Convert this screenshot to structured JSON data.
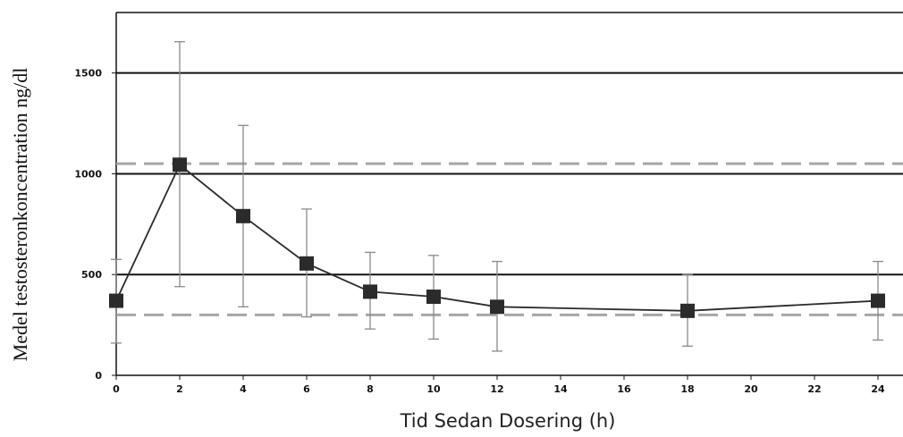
{
  "chart_data": {
    "type": "line",
    "xlabel": "Tid Sedan Dosering (h)",
    "ylabel": "Medel testosteronkoncentration ng/dl",
    "x_ticks": [
      "0",
      "2",
      "4",
      "6",
      "8",
      "10",
      "12",
      "14",
      "16",
      "18",
      "20",
      "22",
      "24"
    ],
    "y_ticks": [
      "0",
      "500",
      "1000",
      "1500"
    ],
    "xlim": [
      0,
      24
    ],
    "ylim": [
      0,
      1800
    ],
    "grid": "horizontal at 500, 1000, 1500",
    "reference_lines": [
      {
        "y": 300,
        "style": "dashed",
        "color": "#a6a6a6"
      },
      {
        "y": 1050,
        "style": "dashed",
        "color": "#a6a6a6"
      }
    ],
    "series": [
      {
        "x": [
          0,
          2,
          4,
          6,
          8,
          10,
          12,
          18,
          24
        ],
        "y": [
          370,
          1045,
          790,
          555,
          415,
          390,
          340,
          320,
          370
        ],
        "err_low": [
          160,
          440,
          340,
          290,
          230,
          180,
          120,
          145,
          175
        ],
        "err_high": [
          575,
          1655,
          1240,
          825,
          610,
          595,
          565,
          500,
          565
        ],
        "color": "#2b2b2b",
        "marker": "square"
      }
    ]
  }
}
